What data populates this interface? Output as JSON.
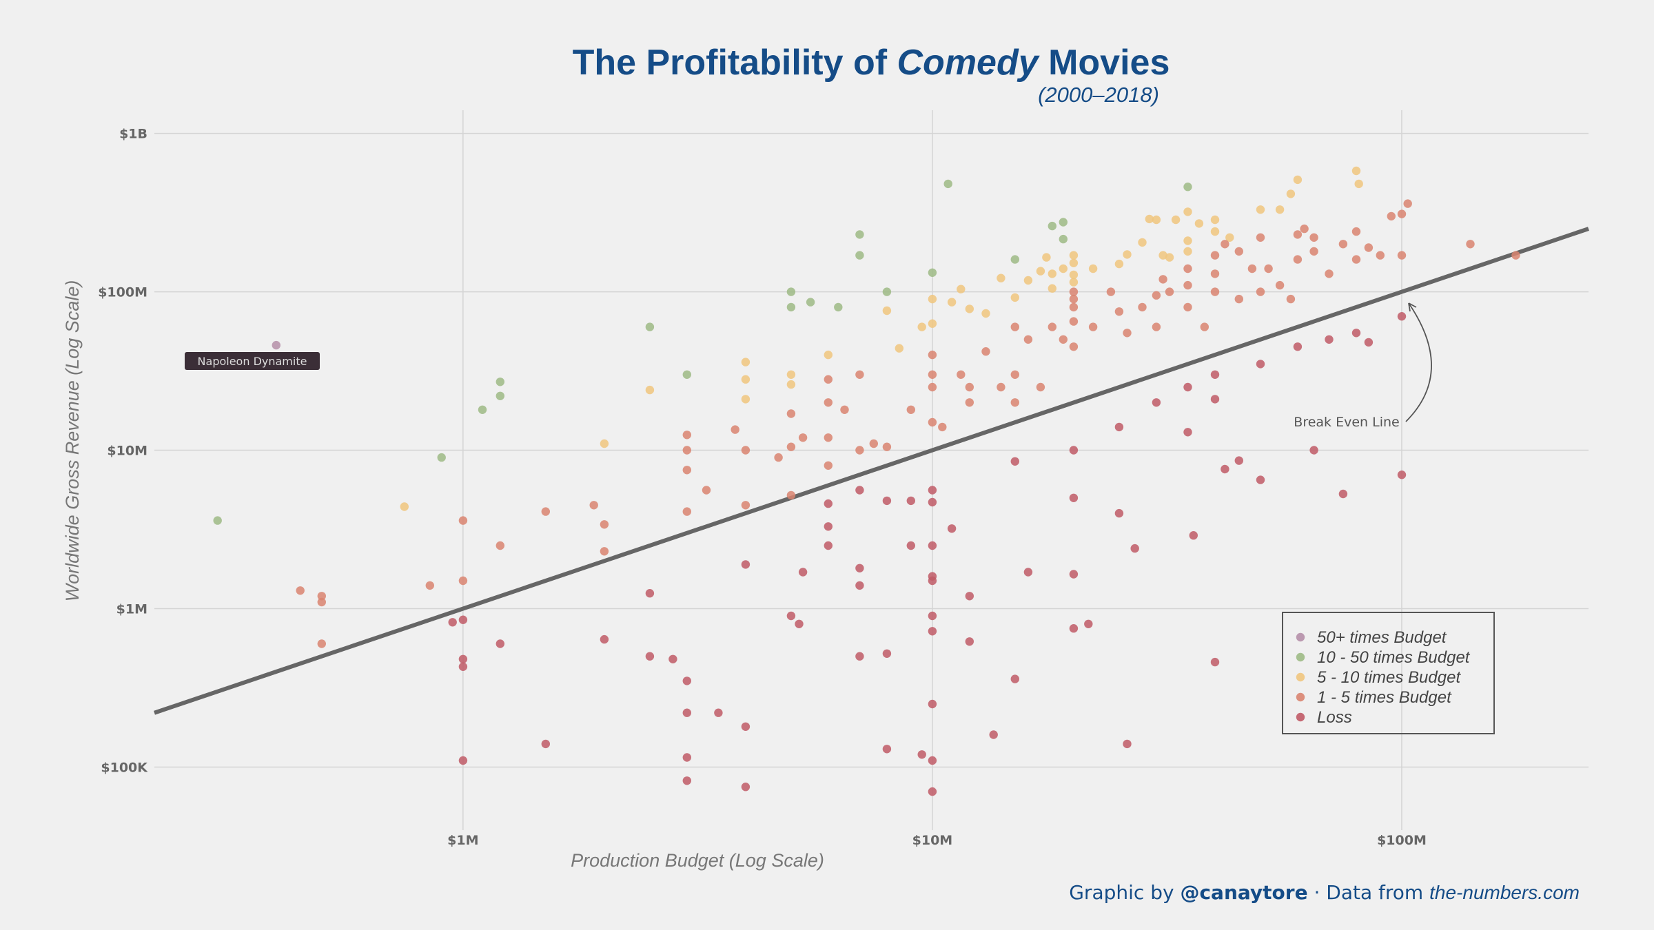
{
  "chart_data": {
    "type": "scatter",
    "title_prefix": "The Profitability of ",
    "title_emphasis": "Comedy",
    "title_suffix": " Movies",
    "subtitle": "(2000–2018)",
    "xlabel": "Production Budget (Log Scale)",
    "ylabel": "Worldwide Gross Revenue (Log Scale)",
    "x_scale": "log",
    "y_scale": "log",
    "xlim": [
      220000,
      250000000
    ],
    "ylim": [
      40000,
      1400000000
    ],
    "grid": true,
    "x_ticks": [
      {
        "value": 1000000,
        "label": "$1M"
      },
      {
        "value": 10000000,
        "label": "$10M"
      },
      {
        "value": 100000000,
        "label": "$100M"
      }
    ],
    "y_ticks": [
      {
        "value": 100000,
        "label": "$100K"
      },
      {
        "value": 1000000,
        "label": "$1M"
      },
      {
        "value": 10000000,
        "label": "$10M"
      },
      {
        "value": 100000000,
        "label": "$100M"
      },
      {
        "value": 1000000000,
        "label": "$1B"
      }
    ],
    "break_even_line": {
      "label": "Break Even Line",
      "slope_in_log_space": 1
    },
    "annotation_arrow_target": {
      "x": 100000000,
      "y": 100000000
    },
    "highlight": {
      "label": "Napoleon Dynamite",
      "x": 400000,
      "y": 46000000
    },
    "legend": {
      "position": "bottom-right",
      "entries": [
        {
          "label": "50+ times Budget",
          "color": "#b58fa8"
        },
        {
          "label": "10 - 50 times Budget",
          "color": "#9dba85"
        },
        {
          "label": "5 - 10 times Budget",
          "color": "#f0c57e"
        },
        {
          "label": "1 - 5 times Budget",
          "color": "#d98470"
        },
        {
          "label": "Loss",
          "color": "#c05a66"
        }
      ]
    },
    "series": [
      {
        "name": "50+ times Budget",
        "color": "#b58fa8",
        "points": [
          [
            400000,
            46000000
          ]
        ]
      },
      {
        "name": "10 - 50 times Budget",
        "color": "#9dba85",
        "points": [
          [
            300000,
            3600000
          ],
          [
            900000,
            9000000
          ],
          [
            1100000,
            18000000
          ],
          [
            1200000,
            22000000
          ],
          [
            1200000,
            27000000
          ],
          [
            2500000,
            60000000
          ],
          [
            3000000,
            30000000
          ],
          [
            5000000,
            80000000
          ],
          [
            5000000,
            100000000
          ],
          [
            5500000,
            86000000
          ],
          [
            6300000,
            80000000
          ],
          [
            7000000,
            170000000
          ],
          [
            7000000,
            230000000
          ],
          [
            8000000,
            100000000
          ],
          [
            10000000,
            132000000
          ],
          [
            10800000,
            480000000
          ],
          [
            15000000,
            160000000
          ],
          [
            18000000,
            260000000
          ],
          [
            19000000,
            275000000
          ],
          [
            19000000,
            215000000
          ],
          [
            35000000,
            460000000
          ]
        ]
      },
      {
        "name": "5 - 10 times Budget",
        "color": "#f0c57e",
        "points": [
          [
            750000,
            4400000
          ],
          [
            2000000,
            11000000
          ],
          [
            2500000,
            24000000
          ],
          [
            4000000,
            21000000
          ],
          [
            4000000,
            28000000
          ],
          [
            4000000,
            36000000
          ],
          [
            5000000,
            26000000
          ],
          [
            5000000,
            30000000
          ],
          [
            6000000,
            40000000
          ],
          [
            8000000,
            76000000
          ],
          [
            8500000,
            44000000
          ],
          [
            9500000,
            60000000
          ],
          [
            10000000,
            90000000
          ],
          [
            10000000,
            63000000
          ],
          [
            11000000,
            86000000
          ],
          [
            11500000,
            104000000
          ],
          [
            12000000,
            78000000
          ],
          [
            13000000,
            73000000
          ],
          [
            14000000,
            122000000
          ],
          [
            15000000,
            92000000
          ],
          [
            16000000,
            118000000
          ],
          [
            17000000,
            135000000
          ],
          [
            17500000,
            165000000
          ],
          [
            18000000,
            130000000
          ],
          [
            18000000,
            105000000
          ],
          [
            19000000,
            140000000
          ],
          [
            20000000,
            170000000
          ],
          [
            20000000,
            152000000
          ],
          [
            20000000,
            128000000
          ],
          [
            20000000,
            115000000
          ],
          [
            22000000,
            140000000
          ],
          [
            25000000,
            150000000
          ],
          [
            26000000,
            172000000
          ],
          [
            28000000,
            205000000
          ],
          [
            29000000,
            288000000
          ],
          [
            30000000,
            285000000
          ],
          [
            31000000,
            170000000
          ],
          [
            32000000,
            165000000
          ],
          [
            33000000,
            285000000
          ],
          [
            35000000,
            180000000
          ],
          [
            35000000,
            320000000
          ],
          [
            35000000,
            210000000
          ],
          [
            37000000,
            270000000
          ],
          [
            40000000,
            285000000
          ],
          [
            40000000,
            240000000
          ],
          [
            43000000,
            220000000
          ],
          [
            50000000,
            330000000
          ],
          [
            55000000,
            330000000
          ],
          [
            58000000,
            415000000
          ],
          [
            60000000,
            510000000
          ],
          [
            80000000,
            580000000
          ],
          [
            81000000,
            480000000
          ]
        ]
      },
      {
        "name": "1 - 5 times Budget",
        "color": "#d98470",
        "points": [
          [
            450000,
            1300000
          ],
          [
            500000,
            1100000
          ],
          [
            500000,
            1200000
          ],
          [
            500000,
            600000
          ],
          [
            850000,
            1400000
          ],
          [
            1000000,
            1500000
          ],
          [
            1000000,
            3600000
          ],
          [
            1200000,
            2500000
          ],
          [
            1500000,
            4100000
          ],
          [
            1900000,
            4500000
          ],
          [
            2000000,
            2300000
          ],
          [
            2000000,
            3400000
          ],
          [
            3000000,
            4100000
          ],
          [
            3000000,
            7500000
          ],
          [
            3000000,
            10000000
          ],
          [
            3000000,
            12500000
          ],
          [
            3300000,
            5600000
          ],
          [
            3800000,
            13500000
          ],
          [
            4000000,
            10000000
          ],
          [
            4000000,
            4500000
          ],
          [
            4700000,
            9000000
          ],
          [
            5000000,
            5200000
          ],
          [
            5000000,
            10500000
          ],
          [
            5000000,
            17000000
          ],
          [
            5300000,
            12000000
          ],
          [
            6000000,
            8000000
          ],
          [
            6000000,
            12000000
          ],
          [
            6000000,
            20000000
          ],
          [
            6000000,
            28000000
          ],
          [
            6500000,
            18000000
          ],
          [
            7000000,
            10000000
          ],
          [
            7000000,
            30000000
          ],
          [
            7500000,
            11000000
          ],
          [
            8000000,
            10500000
          ],
          [
            9000000,
            18000000
          ],
          [
            10000000,
            15000000
          ],
          [
            10000000,
            25000000
          ],
          [
            10000000,
            30000000
          ],
          [
            10000000,
            40000000
          ],
          [
            10500000,
            14000000
          ],
          [
            11500000,
            30000000
          ],
          [
            12000000,
            20000000
          ],
          [
            12000000,
            25000000
          ],
          [
            13000000,
            42000000
          ],
          [
            14000000,
            25000000
          ],
          [
            15000000,
            30000000
          ],
          [
            15000000,
            20000000
          ],
          [
            15000000,
            60000000
          ],
          [
            16000000,
            50000000
          ],
          [
            17000000,
            25000000
          ],
          [
            18000000,
            60000000
          ],
          [
            19000000,
            50000000
          ],
          [
            20000000,
            45000000
          ],
          [
            20000000,
            65000000
          ],
          [
            20000000,
            80000000
          ],
          [
            20000000,
            90000000
          ],
          [
            20000000,
            100000000
          ],
          [
            22000000,
            60000000
          ],
          [
            24000000,
            100000000
          ],
          [
            25000000,
            75000000
          ],
          [
            26000000,
            55000000
          ],
          [
            28000000,
            80000000
          ],
          [
            30000000,
            60000000
          ],
          [
            30000000,
            95000000
          ],
          [
            31000000,
            120000000
          ],
          [
            32000000,
            100000000
          ],
          [
            35000000,
            80000000
          ],
          [
            35000000,
            110000000
          ],
          [
            35000000,
            140000000
          ],
          [
            38000000,
            60000000
          ],
          [
            40000000,
            100000000
          ],
          [
            40000000,
            130000000
          ],
          [
            40000000,
            170000000
          ],
          [
            42000000,
            200000000
          ],
          [
            45000000,
            90000000
          ],
          [
            45000000,
            180000000
          ],
          [
            48000000,
            140000000
          ],
          [
            50000000,
            100000000
          ],
          [
            50000000,
            220000000
          ],
          [
            52000000,
            140000000
          ],
          [
            55000000,
            110000000
          ],
          [
            58000000,
            90000000
          ],
          [
            60000000,
            160000000
          ],
          [
            60000000,
            230000000
          ],
          [
            62000000,
            250000000
          ],
          [
            65000000,
            180000000
          ],
          [
            65000000,
            220000000
          ],
          [
            70000000,
            130000000
          ],
          [
            75000000,
            200000000
          ],
          [
            80000000,
            160000000
          ],
          [
            80000000,
            240000000
          ],
          [
            85000000,
            190000000
          ],
          [
            90000000,
            170000000
          ],
          [
            95000000,
            300000000
          ],
          [
            100000000,
            310000000
          ],
          [
            100000000,
            170000000
          ],
          [
            103000000,
            360000000
          ],
          [
            140000000,
            200000000
          ],
          [
            175000000,
            170000000
          ]
        ]
      },
      {
        "name": "Loss",
        "color": "#c05a66",
        "points": [
          [
            950000,
            820000
          ],
          [
            1000000,
            850000
          ],
          [
            1000000,
            480000
          ],
          [
            1000000,
            430000
          ],
          [
            1000000,
            110000
          ],
          [
            1200000,
            600000
          ],
          [
            1500000,
            140000
          ],
          [
            2000000,
            640000
          ],
          [
            2500000,
            1250000
          ],
          [
            2500000,
            500000
          ],
          [
            2800000,
            480000
          ],
          [
            3000000,
            350000
          ],
          [
            3000000,
            220000
          ],
          [
            3000000,
            115000
          ],
          [
            3000000,
            82000
          ],
          [
            3500000,
            220000
          ],
          [
            4000000,
            180000
          ],
          [
            4000000,
            1900000
          ],
          [
            4000000,
            75000
          ],
          [
            5000000,
            900000
          ],
          [
            5200000,
            800000
          ],
          [
            5300000,
            1700000
          ],
          [
            6000000,
            4600000
          ],
          [
            6000000,
            3300000
          ],
          [
            6000000,
            2500000
          ],
          [
            7000000,
            5600000
          ],
          [
            7000000,
            1800000
          ],
          [
            7000000,
            1400000
          ],
          [
            7000000,
            500000
          ],
          [
            8000000,
            520000
          ],
          [
            8000000,
            4800000
          ],
          [
            8000000,
            130000
          ],
          [
            9000000,
            2500000
          ],
          [
            9000000,
            4800000
          ],
          [
            9500000,
            120000
          ],
          [
            10000000,
            5600000
          ],
          [
            10000000,
            4700000
          ],
          [
            10000000,
            2500000
          ],
          [
            10000000,
            1600000
          ],
          [
            10000000,
            1500000
          ],
          [
            10000000,
            900000
          ],
          [
            10000000,
            720000
          ],
          [
            10000000,
            250000
          ],
          [
            10000000,
            110000
          ],
          [
            10000000,
            70000
          ],
          [
            11000000,
            3200000
          ],
          [
            12000000,
            1200000
          ],
          [
            12000000,
            620000
          ],
          [
            13500000,
            160000
          ],
          [
            15000000,
            360000
          ],
          [
            16000000,
            1700000
          ],
          [
            20000000,
            5000000
          ],
          [
            20000000,
            1650000
          ],
          [
            20000000,
            750000
          ],
          [
            21500000,
            800000
          ],
          [
            25000000,
            4000000
          ],
          [
            26000000,
            140000
          ],
          [
            27000000,
            2400000
          ],
          [
            35000000,
            13000000
          ],
          [
            36000000,
            2900000
          ],
          [
            40000000,
            460000
          ],
          [
            40000000,
            21000000
          ],
          [
            42000000,
            7600000
          ],
          [
            45000000,
            8600000
          ],
          [
            50000000,
            6500000
          ],
          [
            65000000,
            10000000
          ],
          [
            75000000,
            5300000
          ],
          [
            100000000,
            7000000
          ],
          [
            15000000,
            8500000
          ],
          [
            20000000,
            10000000
          ],
          [
            25000000,
            14000000
          ],
          [
            30000000,
            20000000
          ],
          [
            35000000,
            25000000
          ],
          [
            40000000,
            30000000
          ],
          [
            50000000,
            35000000
          ],
          [
            60000000,
            45000000
          ],
          [
            70000000,
            50000000
          ],
          [
            80000000,
            55000000
          ],
          [
            85000000,
            48000000
          ],
          [
            100000000,
            70000000
          ]
        ]
      }
    ]
  },
  "footer": {
    "prefix": "Graphic by ",
    "handle": "@canaytore",
    "middle": " · Data from ",
    "source": "the-numbers.com"
  },
  "colors": {
    "background": "#f0f0f0",
    "title": "#154c87",
    "grid": "#d4d4d4",
    "break_even": "#666666",
    "legend_border": "#555555"
  }
}
